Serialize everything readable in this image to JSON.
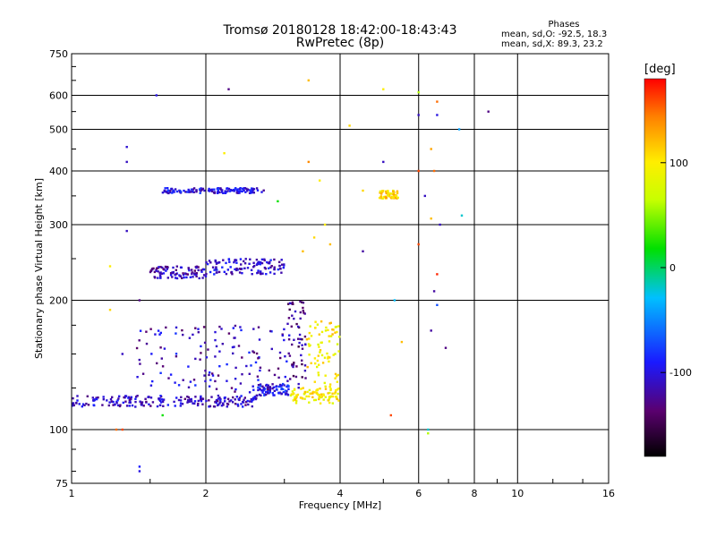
{
  "title": {
    "line1": "Tromsø 20180128 18:42:00-18:43:43",
    "line2": "RwPretec (8p)"
  },
  "phases_box": {
    "title": "Phases",
    "line_o": "mean, sd,O: -92.5, 18.3",
    "line_x": "mean, sd,X: 89.3, 23.2"
  },
  "colorbar": {
    "unit": "[deg]",
    "ticks": [
      "100",
      "0",
      "-100"
    ],
    "tick_values": [
      100,
      0,
      -100
    ],
    "range": [
      -180,
      180
    ],
    "colormap": "rainbow (black-purple-blue-cyan-green-yellow-orange-red)"
  },
  "chart_data": {
    "type": "scatter",
    "title": "Tromsø 20180128 18:42:00-18:43:43",
    "subtitle": "RwPretec (8p)",
    "xlabel": "Frequency [MHz]",
    "ylabel": "Stationary phase Virtual Height [km]",
    "x_scale": "log",
    "y_scale": "log",
    "xlim": [
      1,
      16
    ],
    "ylim": [
      75,
      750
    ],
    "xticks": [
      1,
      2,
      4,
      6,
      8,
      10,
      16
    ],
    "xtick_labels": [
      "1",
      "2",
      "4",
      "6",
      "8",
      "10",
      "16"
    ],
    "yticks": [
      75,
      100,
      200,
      300,
      400,
      500,
      600,
      750
    ],
    "ytick_labels": [
      "75",
      "100",
      "200",
      "300",
      "400",
      "500",
      "600",
      "750"
    ],
    "grid": true,
    "color_encoding": "phase [deg]",
    "traces": [
      {
        "x_range": [
          1.0,
          2.6
        ],
        "y": [
          113,
          120
        ],
        "phase": -110
      },
      {
        "x_range": [
          2.6,
          3.1
        ],
        "y": [
          120,
          128
        ],
        "phase": -95
      },
      {
        "x_range": [
          3.1,
          4.0
        ],
        "y": [
          115,
          125
        ],
        "phase": 100
      },
      {
        "x_range": [
          1.5,
          2.0
        ],
        "y": [
          225,
          240
        ],
        "phase": -115
      },
      {
        "x_range": [
          2.0,
          3.0
        ],
        "y": [
          230,
          250
        ],
        "phase": -105
      },
      {
        "x_range": [
          1.6,
          2.7
        ],
        "y": [
          355,
          365
        ],
        "phase": -100
      },
      {
        "x_range": [
          4.9,
          5.4
        ],
        "y": [
          345,
          360
        ],
        "phase": 110
      },
      {
        "x_range": [
          3.05,
          3.35
        ],
        "y": [
          125,
          200
        ],
        "phase": -130
      },
      {
        "x_range": [
          3.35,
          4.0
        ],
        "y": [
          125,
          180
        ],
        "phase": 100
      }
    ],
    "scatter_points": [
      [
        1.33,
        290,
        -110
      ],
      [
        1.33,
        420,
        -110
      ],
      [
        1.33,
        455,
        -105
      ],
      [
        1.55,
        600,
        -100
      ],
      [
        2.25,
        620,
        -130
      ],
      [
        3.4,
        650,
        120
      ],
      [
        3.4,
        420,
        140
      ],
      [
        4.2,
        510,
        110
      ],
      [
        5.0,
        620,
        100
      ],
      [
        6.0,
        610,
        60
      ],
      [
        6.0,
        540,
        -110
      ],
      [
        6.6,
        580,
        150
      ],
      [
        6.6,
        540,
        -100
      ],
      [
        7.4,
        500,
        -40
      ],
      [
        8.6,
        550,
        -130
      ],
      [
        6.0,
        400,
        160
      ],
      [
        6.5,
        400,
        150
      ],
      [
        6.4,
        450,
        130
      ],
      [
        5.0,
        420,
        -110
      ],
      [
        7.5,
        315,
        -20
      ],
      [
        6.7,
        300,
        -110
      ],
      [
        6.4,
        310,
        120
      ],
      [
        6.2,
        350,
        -110
      ],
      [
        6.0,
        270,
        160
      ],
      [
        6.6,
        230,
        170
      ],
      [
        6.5,
        210,
        -120
      ],
      [
        6.6,
        195,
        -70
      ],
      [
        6.4,
        170,
        -120
      ],
      [
        6.9,
        155,
        -130
      ],
      [
        5.5,
        160,
        120
      ],
      [
        5.3,
        200,
        -30
      ],
      [
        4.5,
        260,
        -120
      ],
      [
        3.8,
        270,
        120
      ],
      [
        3.7,
        300,
        100
      ],
      [
        3.5,
        280,
        110
      ],
      [
        3.3,
        260,
        120
      ],
      [
        1.22,
        240,
        100
      ],
      [
        1.22,
        190,
        110
      ],
      [
        1.42,
        200,
        -130
      ],
      [
        1.3,
        150,
        -110
      ],
      [
        1.42,
        80,
        -100
      ],
      [
        1.42,
        82,
        -90
      ],
      [
        1.3,
        100,
        160
      ],
      [
        1.26,
        100,
        150
      ],
      [
        1.6,
        108,
        20
      ],
      [
        5.2,
        108,
        160
      ],
      [
        6.3,
        100,
        -20
      ],
      [
        6.3,
        98,
        60
      ],
      [
        2.9,
        340,
        20
      ],
      [
        2.2,
        440,
        100
      ],
      [
        4.5,
        360,
        110
      ],
      [
        3.6,
        380,
        100
      ]
    ]
  }
}
